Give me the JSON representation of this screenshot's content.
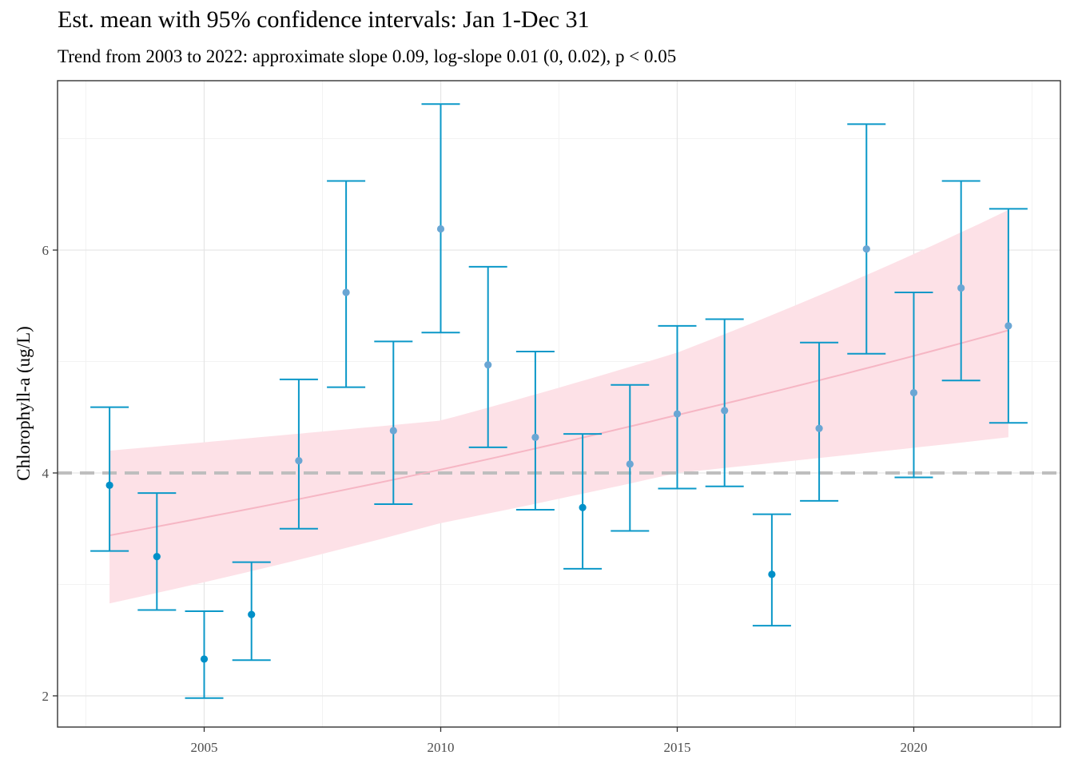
{
  "chart_data": {
    "type": "scatter",
    "title": "Est. mean with 95% confidence intervals: Jan 1-Dec 31",
    "subtitle": "Trend from 2003 to 2022: approximate slope 0.09, log-slope 0.01 (0, 0.02), p < 0.05",
    "ylabel": "Chlorophyll-a (ug/L)",
    "xlabel": "",
    "x_ticks": [
      2005,
      2010,
      2015,
      2020
    ],
    "y_ticks": [
      2,
      4,
      6
    ],
    "xlim": [
      2001.9,
      2023.1
    ],
    "ylim": [
      1.72,
      7.52
    ],
    "grid": true,
    "reference_line": {
      "y": 4.0,
      "style": "dashed",
      "color": "#bebebe"
    },
    "colors": {
      "errorbar": "#0b98c8",
      "point_low": "#0090c8",
      "point_high": "#6aa6d4",
      "trend_line": "#f6b6c4",
      "trend_band": "#fde1e7"
    },
    "series": [
      {
        "x": 2003,
        "y": 3.89,
        "lower": 3.3,
        "upper": 4.59
      },
      {
        "x": 2004,
        "y": 3.25,
        "lower": 2.77,
        "upper": 3.82
      },
      {
        "x": 2005,
        "y": 2.33,
        "lower": 1.98,
        "upper": 2.76
      },
      {
        "x": 2006,
        "y": 2.73,
        "lower": 2.32,
        "upper": 3.2
      },
      {
        "x": 2007,
        "y": 4.11,
        "lower": 3.5,
        "upper": 4.84
      },
      {
        "x": 2008,
        "y": 5.62,
        "lower": 4.77,
        "upper": 6.62
      },
      {
        "x": 2009,
        "y": 4.38,
        "lower": 3.72,
        "upper": 5.18
      },
      {
        "x": 2010,
        "y": 6.19,
        "lower": 5.26,
        "upper": 7.31
      },
      {
        "x": 2011,
        "y": 4.97,
        "lower": 4.23,
        "upper": 5.85
      },
      {
        "x": 2012,
        "y": 4.32,
        "lower": 3.67,
        "upper": 5.09
      },
      {
        "x": 2013,
        "y": 3.69,
        "lower": 3.14,
        "upper": 4.35
      },
      {
        "x": 2014,
        "y": 4.08,
        "lower": 3.48,
        "upper": 4.79
      },
      {
        "x": 2015,
        "y": 4.53,
        "lower": 3.86,
        "upper": 5.32
      },
      {
        "x": 2016,
        "y": 4.56,
        "lower": 3.88,
        "upper": 5.38
      },
      {
        "x": 2017,
        "y": 3.09,
        "lower": 2.63,
        "upper": 3.63
      },
      {
        "x": 2018,
        "y": 4.4,
        "lower": 3.75,
        "upper": 5.17
      },
      {
        "x": 2019,
        "y": 6.01,
        "lower": 5.07,
        "upper": 7.13
      },
      {
        "x": 2020,
        "y": 4.72,
        "lower": 3.96,
        "upper": 5.62
      },
      {
        "x": 2021,
        "y": 5.66,
        "lower": 4.83,
        "upper": 6.62
      },
      {
        "x": 2022,
        "y": 5.32,
        "lower": 4.45,
        "upper": 6.37
      }
    ],
    "trend": {
      "x": [
        2003,
        2010,
        2015,
        2022
      ],
      "fit": [
        3.44,
        4.03,
        4.52,
        5.28
      ],
      "lower": [
        2.83,
        3.55,
        4.0,
        4.32
      ],
      "upper": [
        4.2,
        4.47,
        5.08,
        6.36
      ]
    }
  }
}
